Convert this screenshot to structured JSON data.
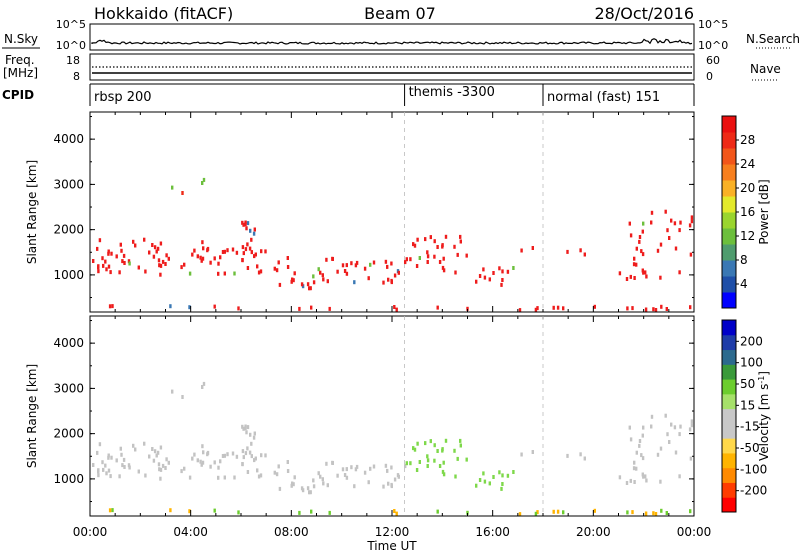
{
  "header": {
    "station": "Hokkaido (fitACF)",
    "beam": "Beam 07",
    "date": "28/Oct/2016"
  },
  "top_panels": {
    "nsky": {
      "label": "N.Sky",
      "ticks_left": [
        "10^5",
        "10^0"
      ],
      "right_label": "N.Search",
      "ticks_right": [
        "10^5",
        "10^0"
      ]
    },
    "freq": {
      "label_line1": "Freq.",
      "label_line2": "[MHz]",
      "ticks_left": [
        "18",
        "8"
      ],
      "right_label": "Nave",
      "ticks_right": [
        "60",
        "0"
      ]
    },
    "cpid": {
      "label": "CPID",
      "segments": [
        {
          "label": "rbsp 200",
          "start_hour": 0
        },
        {
          "label": "themis -3300",
          "start_hour": 12.5
        },
        {
          "label": "normal (fast) 151",
          "start_hour": 18
        }
      ]
    }
  },
  "chart_data": [
    {
      "type": "heatmap",
      "name": "power",
      "ylabel": "Slant Range [km]",
      "xlabel": "",
      "x_range_hours": [
        0,
        24
      ],
      "y_range_km": [
        180,
        4600
      ],
      "yticks": [
        1000,
        2000,
        3000,
        4000
      ],
      "colorbar": {
        "label": "Power [dB]",
        "range": [
          0,
          32
        ],
        "ticks": [
          4,
          8,
          12,
          16,
          20,
          24,
          28
        ],
        "colors": [
          "#0000ff",
          "#1f4fa8",
          "#3a78b4",
          "#4f9c6e",
          "#6cbf3c",
          "#9ad52e",
          "#e3e92b",
          "#f9b126",
          "#f77f1e",
          "#f2561a",
          "#ee2a17",
          "#ea1010"
        ]
      }
    },
    {
      "type": "heatmap",
      "name": "velocity",
      "ylabel": "Slant Range [km]",
      "xlabel": "Time UT",
      "x_range_hours": [
        0,
        24
      ],
      "y_range_km": [
        180,
        4600
      ],
      "yticks": [
        1000,
        2000,
        3000,
        4000
      ],
      "xticks": [
        "00:00",
        "04:00",
        "08:00",
        "12:00",
        "16:00",
        "20:00",
        "00:00"
      ],
      "colorbar": {
        "label": "Velocity [m s",
        "label_sup": "-1",
        "label_close": "]",
        "range": [
          -250,
          250
        ],
        "ticks": [
          "-200",
          "-100",
          "-50",
          "-15",
          "15",
          "50",
          "100",
          "200"
        ],
        "colors": [
          "#ff0000",
          "#ff3c00",
          "#ff8a00",
          "#ffb400",
          "#ffd84a",
          "#c8c8c8",
          "#c8c8c8",
          "#a6e06a",
          "#6ccd2e",
          "#3a9a3a",
          "#2c6a8e",
          "#1e3ca8",
          "#0000c8"
        ]
      }
    }
  ],
  "colors": {
    "gray_scatter": "#c3c3c3",
    "red_power": "#ee1c1c",
    "green_velocity": "#7ed84a"
  }
}
